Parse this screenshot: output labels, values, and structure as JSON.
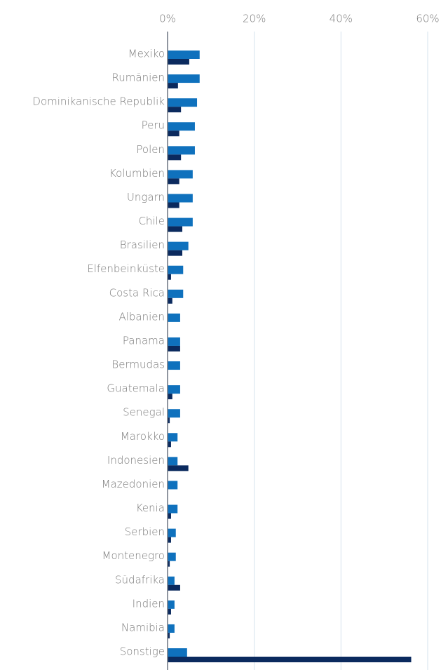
{
  "chart_data": {
    "type": "hbar",
    "categories": [
      "Mexiko",
      "Rumänien",
      "Dominikanische Republik",
      "Peru",
      "Polen",
      "Kolumbien",
      "Ungarn",
      "Chile",
      "Brasilien",
      "Elfenbeinküste",
      "Costa Rica",
      "Albanien",
      "Panama",
      "Bermudas",
      "Guatemala",
      "Senegal",
      "Marokko",
      "Indonesien",
      "Mazedonien",
      "Kenia",
      "Serbien",
      "Montenegro",
      "Südafrika",
      "Indien",
      "Namibia",
      "Sonstige"
    ],
    "series": [
      {
        "color": "#0f71bd",
        "values": [
          7.4,
          7.4,
          6.8,
          6.3,
          6.3,
          5.8,
          5.8,
          5.8,
          4.8,
          3.6,
          3.6,
          2.9,
          2.9,
          2.9,
          2.9,
          2.9,
          2.3,
          2.3,
          2.3,
          2.3,
          1.9,
          1.9,
          1.6,
          1.6,
          1.6,
          4.5
        ]
      },
      {
        "color": "#0b2a5e",
        "values": [
          5.0,
          2.4,
          3.1,
          2.7,
          3.1,
          2.7,
          2.7,
          3.4,
          3.4,
          0.8,
          1.1,
          0,
          2.9,
          0,
          1.1,
          0.5,
          0.8,
          4.8,
          0,
          0.8,
          0.8,
          0.5,
          2.9,
          0.8,
          0.5,
          56.2
        ]
      }
    ],
    "xlim": [
      0,
      60
    ],
    "xticks": [
      {
        "value": 0,
        "label": "0%"
      },
      {
        "value": 20,
        "label": "20%"
      },
      {
        "value": 40,
        "label": "40%"
      },
      {
        "value": 60,
        "label": "60%"
      }
    ],
    "grid": true
  }
}
